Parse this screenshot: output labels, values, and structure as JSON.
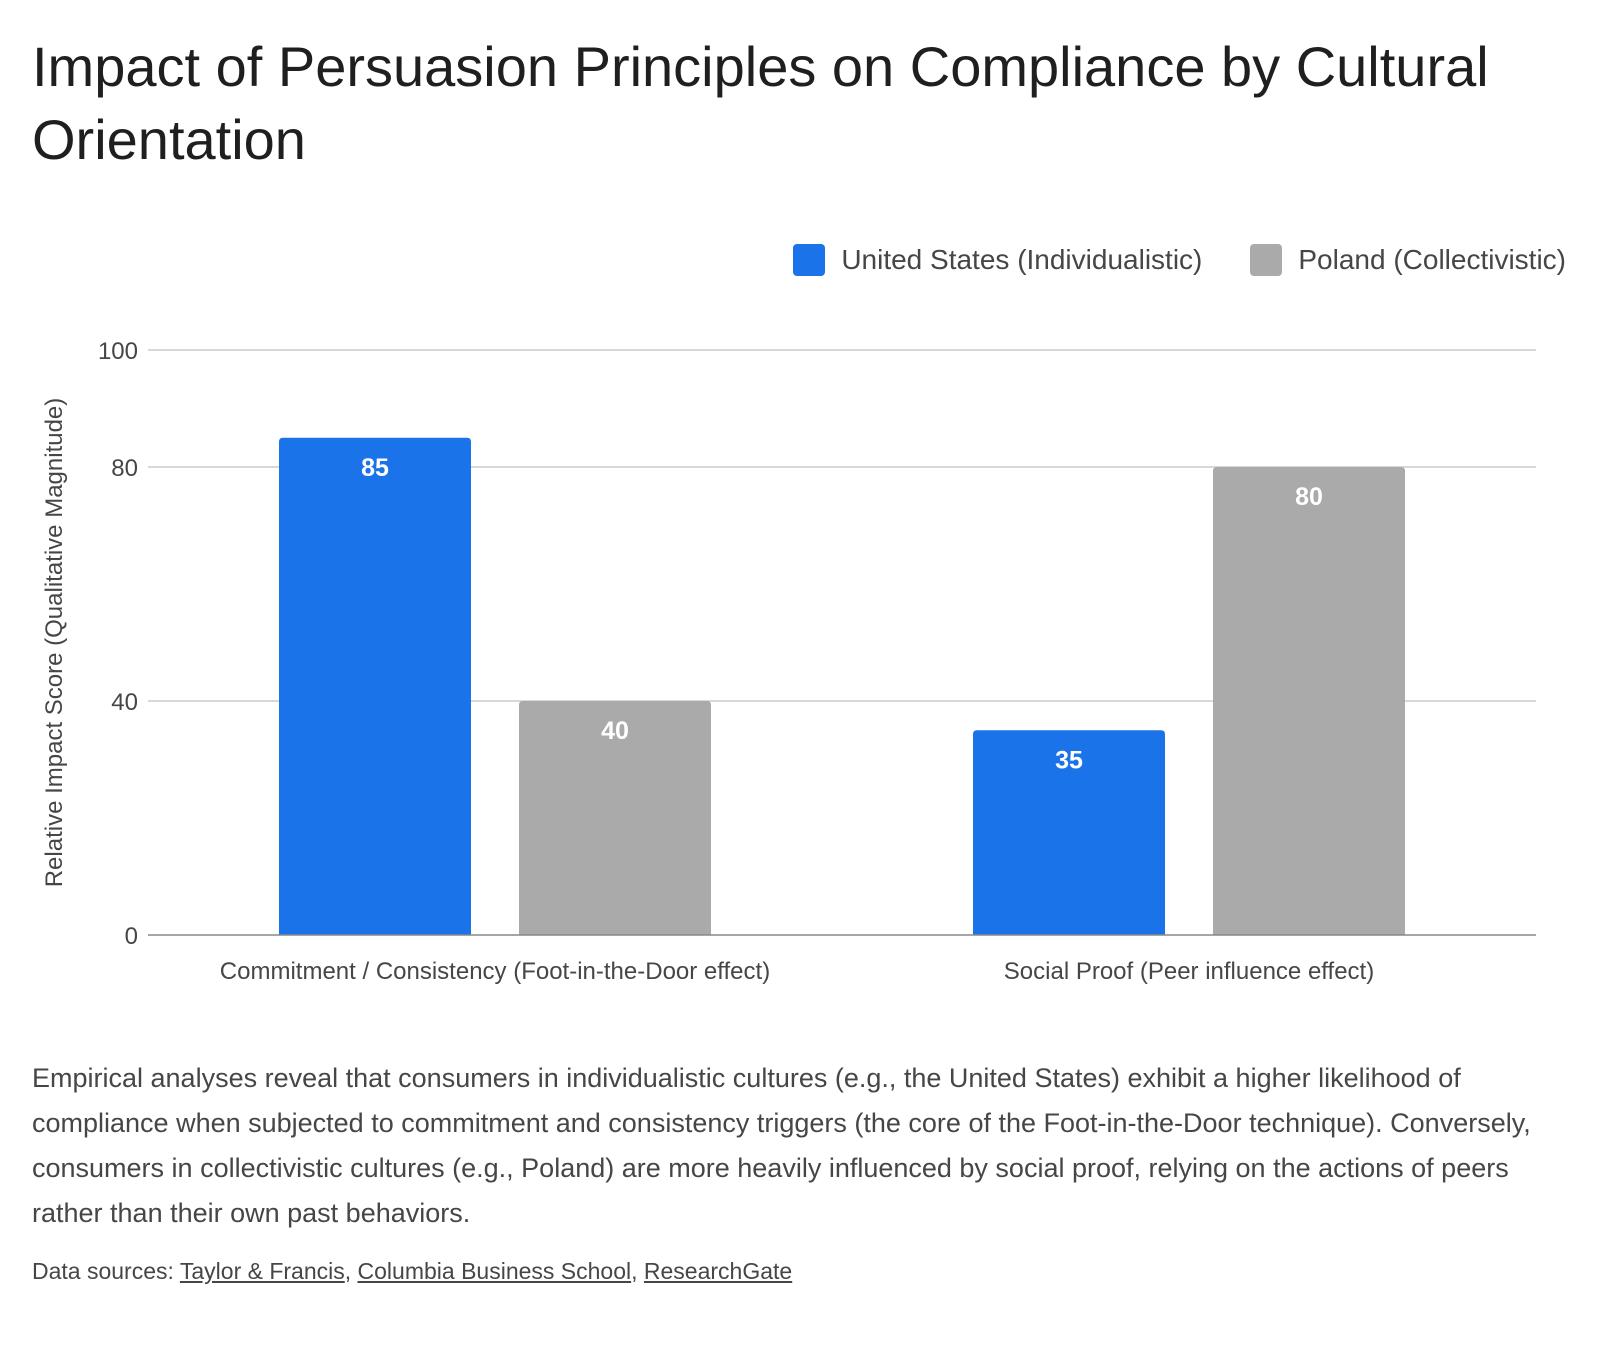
{
  "title": "Impact of Persuasion Principles on Compliance by Cultural Orientation",
  "legend": [
    {
      "label": "United States (Individualistic)",
      "color": "#1a73e8"
    },
    {
      "label": "Poland (Collectivistic)",
      "color": "#aaaaaa"
    }
  ],
  "chart_data": {
    "type": "bar",
    "categories": [
      "Commitment / Consistency (Foot-in-the-Door effect)",
      "Social Proof (Peer influence effect)"
    ],
    "series": [
      {
        "name": "United States (Individualistic)",
        "values": [
          85,
          35
        ],
        "color": "#1a73e8"
      },
      {
        "name": "Poland (Collectivistic)",
        "values": [
          40,
          80
        ],
        "color": "#aaaaaa"
      }
    ],
    "ylabel": "Relative Impact Score (Qualitative Magnitude)",
    "ylim": [
      0,
      100
    ],
    "yticks": [
      0,
      40,
      80,
      100
    ],
    "grid": true,
    "legend_position": "top-right"
  },
  "description": "Empirical analyses reveal that consumers in individualistic cultures (e.g., the United States) exhibit a higher likelihood of compliance when subjected to commitment and consistency triggers (the core of the Foot-in-the-Door technique). Conversely, consumers in collectivistic cultures (e.g., Poland) are more heavily influenced by social proof, relying on the actions of peers rather than their own past behaviors.",
  "sources": {
    "prefix": "Data sources: ",
    "links": [
      "Taylor & Francis",
      "Columbia Business School",
      "ResearchGate"
    ]
  }
}
